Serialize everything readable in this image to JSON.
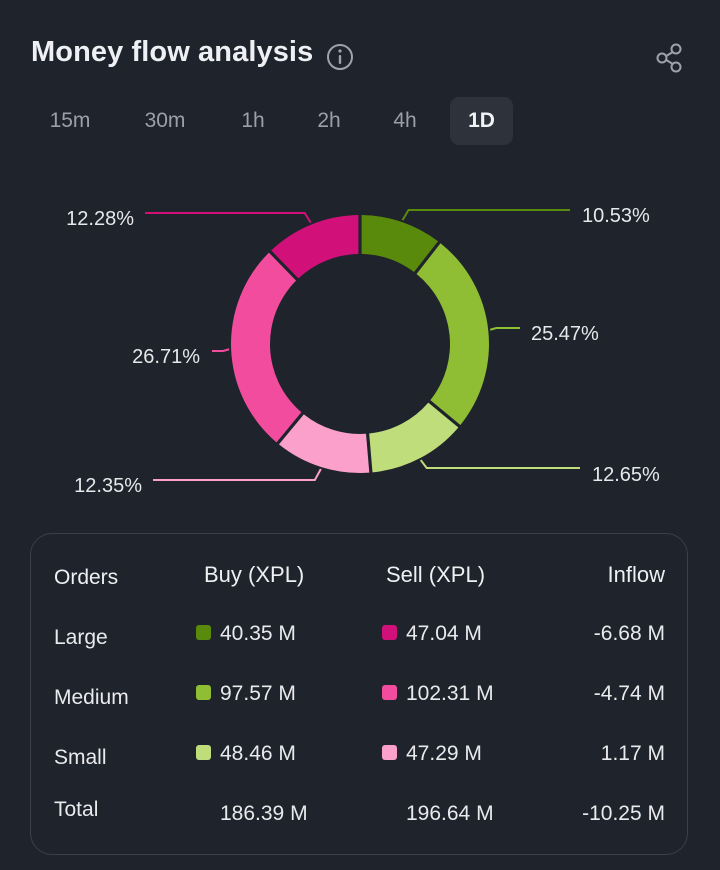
{
  "header": {
    "title": "Money flow analysis"
  },
  "tabs": [
    {
      "label": "15m",
      "active": false
    },
    {
      "label": "30m",
      "active": false
    },
    {
      "label": "1h",
      "active": false
    },
    {
      "label": "2h",
      "active": false
    },
    {
      "label": "4h",
      "active": false
    },
    {
      "label": "1D",
      "active": true
    }
  ],
  "colors": {
    "large_buy": "#5a8a0c",
    "medium_buy": "#8fbd33",
    "small_buy": "#c0dd7b",
    "large_sell": "#d1107a",
    "medium_sell": "#f14c9e",
    "small_sell": "#fba0cb"
  },
  "chart_data": {
    "type": "pie",
    "style": "donut",
    "slices": [
      {
        "name": "Large Buy",
        "value": 10.53,
        "label": "10.53%",
        "color": "#5a8a0c"
      },
      {
        "name": "Medium Buy",
        "value": 25.47,
        "label": "25.47%",
        "color": "#8fbd33"
      },
      {
        "name": "Small Buy",
        "value": 12.65,
        "label": "12.65%",
        "color": "#c0dd7b"
      },
      {
        "name": "Small Sell",
        "value": 12.35,
        "label": "12.35%",
        "color": "#fba0cb"
      },
      {
        "name": "Medium Sell",
        "value": 26.71,
        "label": "26.71%",
        "color": "#f14c9e"
      },
      {
        "name": "Large Sell",
        "value": 12.28,
        "label": "12.28%",
        "color": "#d1107a"
      }
    ]
  },
  "table": {
    "headers": {
      "orders": "Orders",
      "buy": "Buy (XPL)",
      "sell": "Sell (XPL)",
      "inflow": "Inflow"
    },
    "rows": [
      {
        "order": "Large",
        "buy": "40.35 M",
        "sell": "47.04 M",
        "inflow": "-6.68 M",
        "buy_color": "#5a8a0c",
        "sell_color": "#d1107a"
      },
      {
        "order": "Medium",
        "buy": "97.57 M",
        "sell": "102.31 M",
        "inflow": "-4.74 M",
        "buy_color": "#8fbd33",
        "sell_color": "#f14c9e"
      },
      {
        "order": "Small",
        "buy": "48.46 M",
        "sell": "47.29 M",
        "inflow": "1.17 M",
        "buy_color": "#c0dd7b",
        "sell_color": "#fba0cb"
      }
    ],
    "total": {
      "label": "Total",
      "buy": "186.39 M",
      "sell": "196.64 M",
      "inflow": "-10.25 M"
    }
  }
}
